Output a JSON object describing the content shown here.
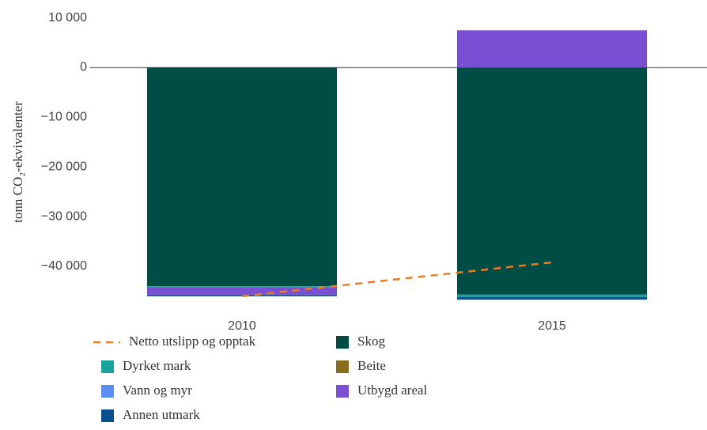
{
  "chart_data": {
    "type": "bar",
    "stacked": true,
    "y_label": "tonn CO₂-ekvivalenter",
    "categories": [
      "2010",
      "2015"
    ],
    "series": [
      {
        "name": "Skog",
        "color": "#004d45",
        "values": [
          -44000,
          -45700
        ]
      },
      {
        "name": "Dyrket mark",
        "color": "#1aa39a",
        "values": [
          -300,
          -500
        ]
      },
      {
        "name": "Beite",
        "color": "#8a6d1e",
        "values": [
          0,
          0
        ]
      },
      {
        "name": "Vann og myr",
        "color": "#5b8ef0",
        "values": [
          0,
          0
        ]
      },
      {
        "name": "Utbygd areal",
        "color": "#7b4fd4",
        "values": [
          -1400,
          7500
        ]
      },
      {
        "name": "Annen utmark",
        "color": "#0b4f8c",
        "values": [
          -300,
          -500
        ]
      }
    ],
    "line": {
      "name": "Netto utslipp og opptak",
      "color": "#f07a1e",
      "values": [
        -46000,
        -39200
      ]
    },
    "ylim": [
      -47000,
      12000
    ],
    "yticks": [
      {
        "value": 10000,
        "label": "10 000"
      },
      0,
      {
        "value": -10000,
        "label": "−10 000"
      },
      {
        "value": -20000,
        "label": "−20 000"
      },
      {
        "value": -30000,
        "label": "−30 000"
      },
      {
        "value": -40000,
        "label": "−40 000"
      }
    ],
    "grid": false
  }
}
